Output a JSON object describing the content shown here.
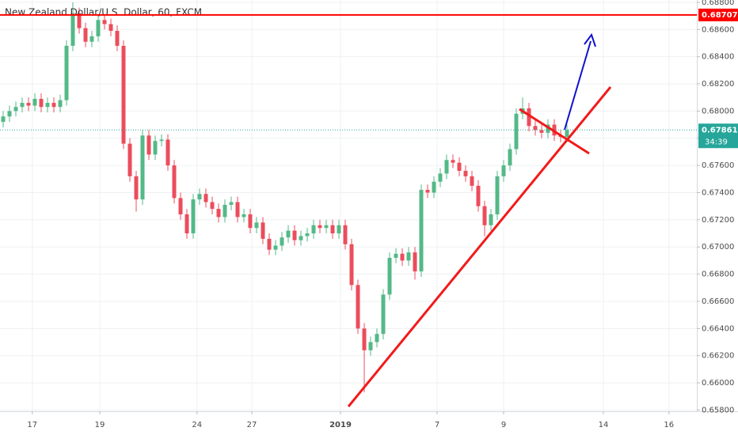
{
  "chart_data": {
    "type": "candlestick",
    "title": "New Zealand Dollar/U.S. Dollar, 60, FXCM",
    "up_color": "#53b987",
    "down_color": "#eb4d5c",
    "open": [
      0.6792,
      0.6796,
      0.68,
      0.6803,
      0.6806,
      0.6804,
      0.6809,
      0.6803,
      0.6806,
      0.6803,
      0.6808,
      0.6848,
      0.6872,
      0.6861,
      0.6851,
      0.6855,
      0.6867,
      0.6864,
      0.6859,
      0.6848,
      0.6776,
      0.6752,
      0.6735,
      0.6782,
      0.6768,
      0.6778,
      0.6779,
      0.676,
      0.6736,
      0.6724,
      0.671,
      0.6735,
      0.6739,
      0.6733,
      0.6728,
      0.6722,
      0.6731,
      0.6733,
      0.6722,
      0.6724,
      0.6714,
      0.6718,
      0.6706,
      0.6698,
      0.6701,
      0.6707,
      0.6712,
      0.6705,
      0.6708,
      0.671,
      0.6716,
      0.6714,
      0.6716,
      0.671,
      0.6716,
      0.6702,
      0.6672,
      0.664,
      0.6624,
      0.663,
      0.6636,
      0.6665,
      0.6692,
      0.6695,
      0.669,
      0.6696,
      0.6682,
      0.6742,
      0.674,
      0.6748,
      0.6754,
      0.6764,
      0.6762,
      0.6756,
      0.6752,
      0.6745,
      0.673,
      0.6716,
      0.6724,
      0.6752,
      0.676,
      0.6772,
      0.6798,
      0.6802,
      0.6789,
      0.6786,
      0.6784,
      0.679,
      0.6782,
      0.6781
    ],
    "high": [
      0.68,
      0.6804,
      0.6807,
      0.681,
      0.681,
      0.6813,
      0.6813,
      0.681,
      0.681,
      0.6812,
      0.6852,
      0.688,
      0.6876,
      0.6865,
      0.6859,
      0.6871,
      0.6871,
      0.6868,
      0.6863,
      0.6852,
      0.678,
      0.6756,
      0.6786,
      0.6786,
      0.6782,
      0.6783,
      0.6783,
      0.6764,
      0.674,
      0.6728,
      0.6739,
      0.6743,
      0.6743,
      0.6737,
      0.6732,
      0.6735,
      0.6737,
      0.6737,
      0.6728,
      0.6728,
      0.6722,
      0.6722,
      0.671,
      0.6705,
      0.6711,
      0.6716,
      0.6716,
      0.6712,
      0.6714,
      0.672,
      0.672,
      0.672,
      0.672,
      0.672,
      0.672,
      0.6706,
      0.6676,
      0.6644,
      0.6634,
      0.664,
      0.6669,
      0.6696,
      0.6699,
      0.6699,
      0.67,
      0.67,
      0.6746,
      0.6746,
      0.6752,
      0.6758,
      0.6768,
      0.6768,
      0.6766,
      0.676,
      0.6756,
      0.6749,
      0.6734,
      0.6728,
      0.6756,
      0.6764,
      0.6776,
      0.6802,
      0.681,
      0.6806,
      0.6793,
      0.679,
      0.6794,
      0.6794,
      0.6786,
      0.679
    ],
    "low": [
      0.6788,
      0.6792,
      0.6796,
      0.6799,
      0.68,
      0.68,
      0.6799,
      0.6799,
      0.6799,
      0.6799,
      0.6804,
      0.6844,
      0.6857,
      0.6847,
      0.6847,
      0.6851,
      0.686,
      0.6855,
      0.6844,
      0.6772,
      0.6748,
      0.6726,
      0.6731,
      0.6764,
      0.6764,
      0.6774,
      0.6756,
      0.6732,
      0.672,
      0.6706,
      0.6706,
      0.6731,
      0.6729,
      0.6724,
      0.6718,
      0.6718,
      0.6727,
      0.6718,
      0.6718,
      0.671,
      0.671,
      0.6702,
      0.6694,
      0.6694,
      0.6697,
      0.6703,
      0.6701,
      0.6701,
      0.6704,
      0.6706,
      0.671,
      0.671,
      0.6706,
      0.6706,
      0.6698,
      0.6668,
      0.6636,
      0.6593,
      0.662,
      0.6626,
      0.6632,
      0.6661,
      0.6688,
      0.6686,
      0.6686,
      0.6676,
      0.6678,
      0.6736,
      0.6736,
      0.6744,
      0.675,
      0.6758,
      0.6752,
      0.6748,
      0.6741,
      0.6726,
      0.6708,
      0.6712,
      0.672,
      0.6748,
      0.6756,
      0.6768,
      0.6794,
      0.6785,
      0.6782,
      0.678,
      0.678,
      0.6778,
      0.6777,
      0.6777
    ],
    "close": [
      0.6796,
      0.68,
      0.6803,
      0.6806,
      0.6804,
      0.6809,
      0.6803,
      0.6806,
      0.6803,
      0.6808,
      0.6848,
      0.6872,
      0.6861,
      0.6851,
      0.6855,
      0.6867,
      0.6864,
      0.6859,
      0.6848,
      0.6776,
      0.6752,
      0.6735,
      0.6782,
      0.6768,
      0.6778,
      0.6779,
      0.676,
      0.6736,
      0.6724,
      0.671,
      0.6735,
      0.6739,
      0.6733,
      0.6728,
      0.6722,
      0.6731,
      0.6733,
      0.6722,
      0.6724,
      0.6714,
      0.6718,
      0.6706,
      0.6698,
      0.6701,
      0.6707,
      0.6712,
      0.6705,
      0.6708,
      0.671,
      0.6716,
      0.6714,
      0.6716,
      0.671,
      0.6716,
      0.6702,
      0.6672,
      0.664,
      0.6624,
      0.663,
      0.6636,
      0.6665,
      0.6692,
      0.6695,
      0.669,
      0.6696,
      0.6682,
      0.6742,
      0.674,
      0.6748,
      0.6754,
      0.6764,
      0.6762,
      0.6756,
      0.6752,
      0.6745,
      0.673,
      0.6716,
      0.6724,
      0.6752,
      0.676,
      0.6772,
      0.6798,
      0.6802,
      0.6789,
      0.6786,
      0.6784,
      0.679,
      0.6782,
      0.6781,
      0.6786
    ],
    "xlim": [
      -0.5,
      109.5
    ],
    "xticks": [
      {
        "value": 4.6,
        "label": "17"
      },
      {
        "value": 15.25,
        "label": "19"
      },
      {
        "value": 30.6,
        "label": "24"
      },
      {
        "value": 39.25,
        "label": "27"
      },
      {
        "value": 53.25,
        "label": "2019"
      },
      {
        "value": 68.5,
        "label": "7"
      },
      {
        "value": 79,
        "label": "9"
      },
      {
        "value": 94.75,
        "label": "14"
      },
      {
        "value": 105.1,
        "label": "16"
      }
    ],
    "ylim": [
      0.65791,
      0.68817
    ],
    "yticks": [
      {
        "value": 0.658,
        "label": "0.65800"
      },
      {
        "value": 0.66,
        "label": "0.66000"
      },
      {
        "value": 0.662,
        "label": "0.66200"
      },
      {
        "value": 0.664,
        "label": "0.66400"
      },
      {
        "value": 0.666,
        "label": "0.66600"
      },
      {
        "value": 0.668,
        "label": "0.66800"
      },
      {
        "value": 0.67,
        "label": "0.67000"
      },
      {
        "value": 0.672,
        "label": "0.67200"
      },
      {
        "value": 0.674,
        "label": "0.67400"
      },
      {
        "value": 0.676,
        "label": "0.67600"
      },
      {
        "value": 0.678,
        "label": "0.67800"
      },
      {
        "value": 0.68,
        "label": "0.68000"
      },
      {
        "value": 0.682,
        "label": "0.68200"
      },
      {
        "value": 0.684,
        "label": "0.68400"
      },
      {
        "value": 0.686,
        "label": "0.68600"
      },
      {
        "value": 0.688,
        "label": "0.68800"
      }
    ],
    "grid": true,
    "resistance": 0.68707,
    "resistance_color": "#ff0000",
    "last_price": 0.67861,
    "last_price_color": "#26a69a",
    "countdown": "34:39"
  }
}
